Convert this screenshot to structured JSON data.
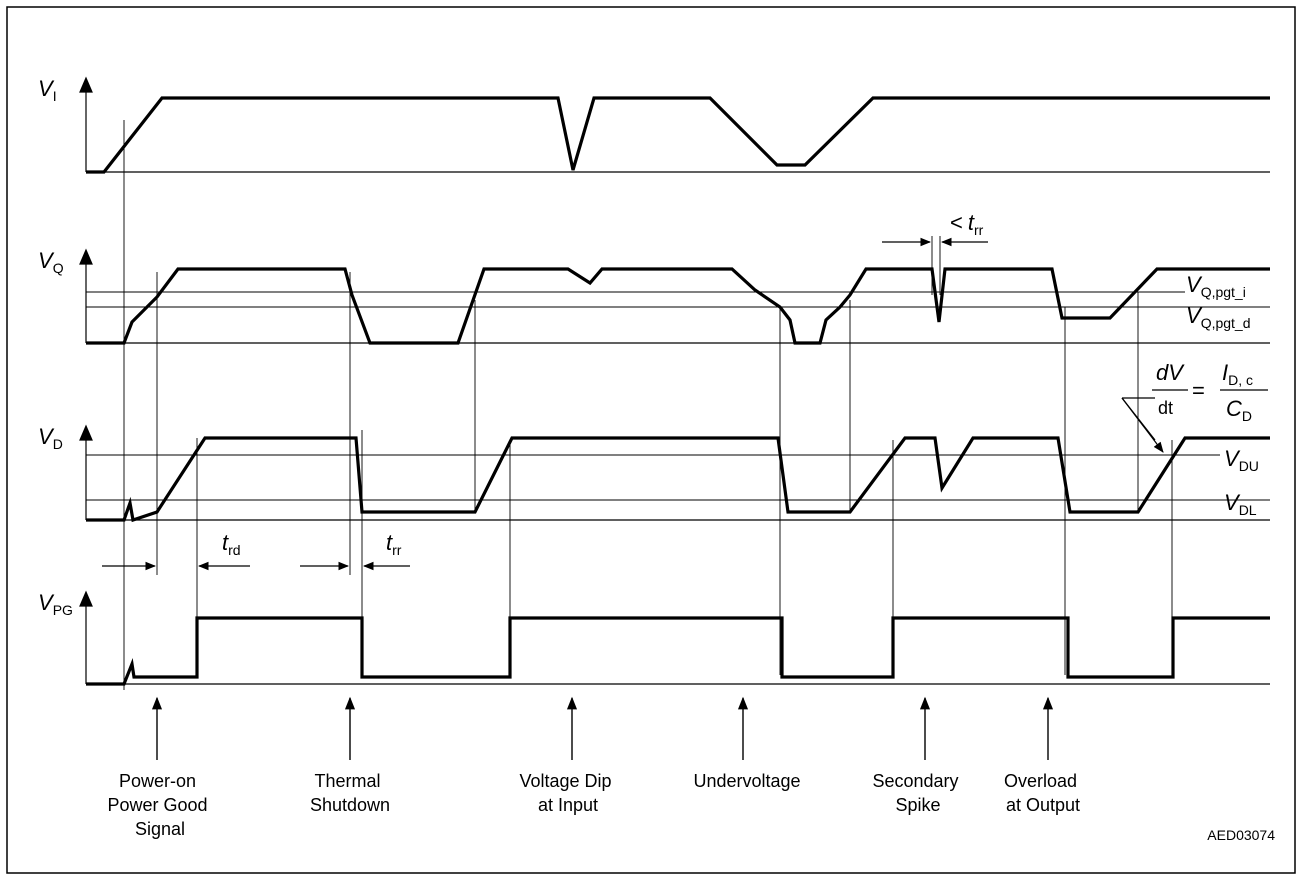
{
  "figure_id": "AED03074",
  "signals": {
    "vi": {
      "symbol": "V",
      "subscript": "I"
    },
    "vq": {
      "symbol": "V",
      "subscript": "Q"
    },
    "vd": {
      "symbol": "V",
      "subscript": "D"
    },
    "vpg": {
      "symbol": "V",
      "subscript": "PG"
    }
  },
  "thresholds": {
    "vq_pgt_i": {
      "symbol": "V",
      "subscript": "Q,pgt_i"
    },
    "vq_pgt_d": {
      "symbol": "V",
      "subscript": "Q,pgt_d"
    },
    "vdu": {
      "symbol": "V",
      "subscript": "DU"
    },
    "vdl": {
      "symbol": "V",
      "subscript": "DL"
    }
  },
  "timings": {
    "trd": {
      "symbol": "t",
      "subscript": "rd"
    },
    "trr": {
      "symbol": "t",
      "subscript": "rr"
    },
    "trr_short": {
      "prefix": "<",
      "symbol": "t",
      "subscript": "rr"
    }
  },
  "slope_formula": {
    "numerator_left": "dV",
    "denominator_left": "dt",
    "equals": "=",
    "numerator_right": "I",
    "numerator_right_sub": "D, c",
    "denominator_right": "C",
    "denominator_right_sub": "D"
  },
  "events": [
    {
      "lines": [
        "Power-on",
        "Power Good",
        "Signal"
      ]
    },
    {
      "lines": [
        "Thermal",
        "Shutdown"
      ]
    },
    {
      "lines": [
        "Voltage Dip",
        "at Input"
      ]
    },
    {
      "lines": [
        "Undervoltage"
      ]
    },
    {
      "lines": [
        "Secondary",
        "Spike"
      ]
    },
    {
      "lines": [
        "Overload",
        "at Output"
      ]
    }
  ]
}
